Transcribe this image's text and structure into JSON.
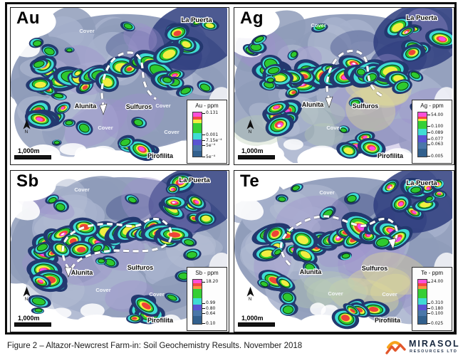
{
  "figure": {
    "caption": "Figure 2 – Altazor-Newcrest Farm-in: Soil Geochemistry Results. November 2018",
    "logo_name": "MIRASOL",
    "logo_subtitle": "RESOURCES LTD"
  },
  "shared": {
    "north_label": "N",
    "scale_label": "1,000m",
    "map_palette": {
      "base": "#8f9cba",
      "base_light": "#a7b1cc",
      "cover_light": "#b4bdd4",
      "haze_purple": "#9d90cc",
      "haze_yellow": "#ded898",
      "haze_green": "#b9ceb2",
      "deep_navy": "#2e3d7e",
      "ring_navy": "#23386f",
      "ring_cyan": "#3fdcd4",
      "ring_green": "#2ec92e",
      "ring_dark_green": "#0a3c10",
      "ring_yellow": "#f2ee41",
      "ring_red": "#ee4337",
      "ring_magenta": "#fa4ae6",
      "dashed_outline": "#ffffff",
      "logo_yellow": "#f6a21c",
      "logo_orange": "#e2572b"
    }
  },
  "panels": [
    {
      "id": "au",
      "title": "Au",
      "legend": {
        "title": "Au - ppm",
        "labels": [
          "0.131",
          "0.001",
          "7.15e⁻⁴",
          "5e⁻⁴",
          "5e⁻⁴"
        ],
        "band_colors": [
          "#fb4fd8",
          "#f64545",
          "#f2ee41",
          "#35cf35",
          "#3fdcd4",
          "#5a55d2",
          "#4a77a9",
          "#32608d"
        ]
      },
      "map_labels": [
        "La Puerta",
        "Cover",
        "Alunita",
        "Sulfuros",
        "Cover",
        "Cover",
        "Cover",
        "Pirofilita"
      ]
    },
    {
      "id": "ag",
      "title": "Ag",
      "legend": {
        "title": "Ag - ppm",
        "labels": [
          "54.00",
          "0.100",
          "0.089",
          "0.077",
          "0.063",
          "0.005"
        ],
        "band_colors": [
          "#fb4fd8",
          "#f64545",
          "#f2ee41",
          "#35cf35",
          "#3fdcd4",
          "#5a55d2",
          "#4a77a9",
          "#32608d"
        ]
      },
      "map_labels": [
        "La Puerta",
        "Cover",
        "Alunita",
        "Sulfuros",
        "Cover",
        "Pirofilita"
      ]
    },
    {
      "id": "sb",
      "title": "Sb",
      "legend": {
        "title": "Sb - ppm",
        "labels": [
          "18.20",
          "0.99",
          "0.80",
          "0.64",
          "0.10"
        ],
        "band_colors": [
          "#fb4fd8",
          "#f64545",
          "#fb9142",
          "#35cf35",
          "#3fdcd4",
          "#5a55d2",
          "#4a77a9",
          "#32608d"
        ]
      },
      "map_labels": [
        "La Puerta",
        "Cover",
        "Alunita",
        "Sulfuros",
        "Cover",
        "Cover",
        "Pirofilita"
      ]
    },
    {
      "id": "te",
      "title": "Te",
      "legend": {
        "title": "Te - ppm",
        "labels": [
          "24.00",
          "0.310",
          "0.180",
          "0.100",
          "0.025"
        ],
        "band_colors": [
          "#fb4fd8",
          "#f64545",
          "#fb9142",
          "#35cf35",
          "#3fdcd4",
          "#5a55d2",
          "#4a77a9",
          "#32608d"
        ]
      },
      "map_labels": [
        "La Puerta",
        "Cover",
        "Alunita",
        "Sulfuros",
        "Cover",
        "Cover",
        "Pirofilita"
      ]
    }
  ]
}
